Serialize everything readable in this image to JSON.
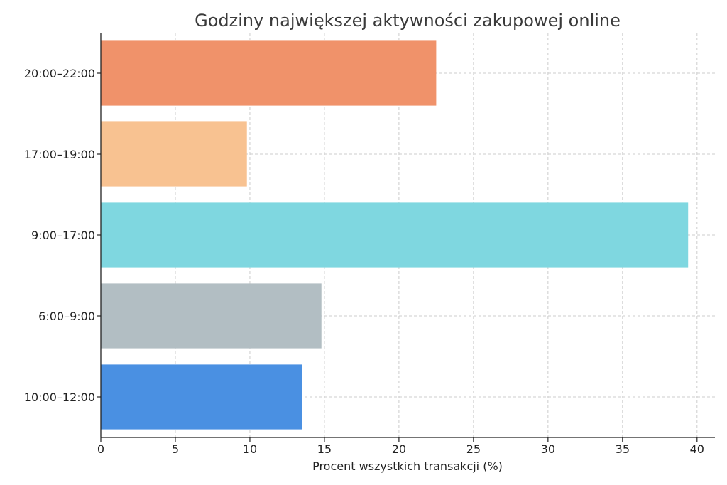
{
  "chart_data": {
    "type": "bar",
    "orientation": "horizontal",
    "title": "Godziny największej aktywności zakupowej online",
    "xlabel": "Procent wszystkich transakcji (%)",
    "ylabel": "",
    "xlim": [
      0,
      41.2
    ],
    "xticks": [
      0,
      5,
      10,
      15,
      20,
      25,
      30,
      35,
      40
    ],
    "grid": true,
    "categories": [
      "10:00–12:00",
      "6:00–9:00",
      "9:00–17:00",
      "17:00–19:00",
      "20:00–22:00"
    ],
    "values": [
      13.5,
      14.8,
      39.4,
      9.8,
      22.5
    ],
    "colors": [
      "#4a90e2",
      "#b2bec3",
      "#7fd7e0",
      "#f8c291",
      "#f0926a"
    ]
  }
}
